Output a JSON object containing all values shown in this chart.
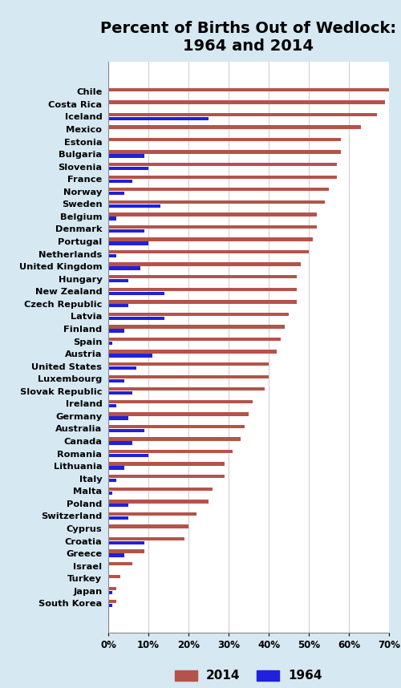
{
  "title": "Percent of Births Out of Wedlock:\n1964 and 2014",
  "countries": [
    "Chile",
    "Costa Rica",
    "Iceland",
    "Mexico",
    "Estonia",
    "Bulgaria",
    "Slovenia",
    "France",
    "Norway",
    "Sweden",
    "Belgium",
    "Denmark",
    "Portugal",
    "Netherlands",
    "United Kingdom",
    "Hungary",
    "New Zealand",
    "Czech Republic",
    "Latvia",
    "Finland",
    "Spain",
    "Austria",
    "United States",
    "Luxembourg",
    "Slovak Republic",
    "Ireland",
    "Germany",
    "Australia",
    "Canada",
    "Romania",
    "Lithuania",
    "Italy",
    "Malta",
    "Poland",
    "Switzerland",
    "Cyprus",
    "Croatia",
    "Greece",
    "Israel",
    "Turkey",
    "Japan",
    "South Korea"
  ],
  "val2014": [
    70,
    69,
    67,
    63,
    58,
    58,
    57,
    57,
    55,
    54,
    52,
    52,
    51,
    50,
    48,
    47,
    47,
    47,
    45,
    44,
    43,
    42,
    40,
    40,
    39,
    36,
    35,
    34,
    33,
    31,
    29,
    29,
    26,
    25,
    22,
    20,
    19,
    9,
    6,
    3,
    2,
    2
  ],
  "val1964": [
    0,
    0,
    25,
    0,
    0,
    9,
    10,
    6,
    4,
    13,
    2,
    9,
    10,
    2,
    8,
    5,
    14,
    5,
    14,
    4,
    1,
    11,
    7,
    4,
    6,
    2,
    5,
    9,
    6,
    10,
    4,
    2,
    1,
    5,
    5,
    0,
    9,
    4,
    0,
    0,
    1,
    1
  ],
  "color2014": "#b5534a",
  "color1964": "#2020dd",
  "bg_color": "#d6e8f2",
  "plot_bg": "#ffffff",
  "xlim": [
    0,
    70
  ],
  "xticks": [
    0,
    10,
    20,
    30,
    40,
    50,
    60,
    70
  ],
  "xticklabels": [
    "0%",
    "10%",
    "20%",
    "30%",
    "40%",
    "50%",
    "60%",
    "70%"
  ],
  "title_fontsize": 14,
  "label_fontsize": 8.2
}
